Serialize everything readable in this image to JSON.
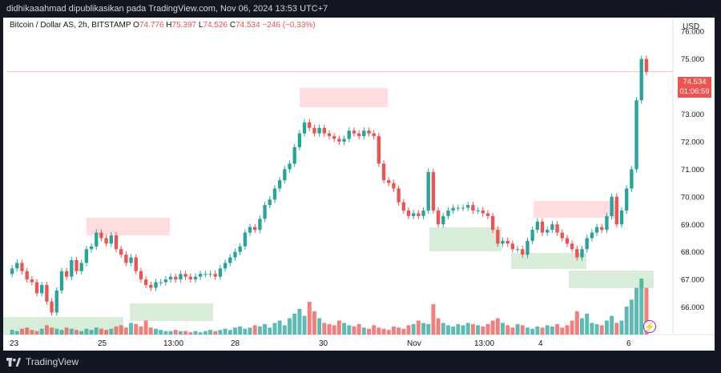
{
  "header": {
    "publish_line": "didhikaaahmad dipublikasikan pada TradingView.com, Nov 06, 2024 13:53 UTC+7"
  },
  "legend": {
    "symbol": "Bitcoin / Dollar AS, 2h, BITSTAMP",
    "o_label": "O",
    "o": "74.776",
    "h_label": "H",
    "h": "75.397",
    "l_label": "L",
    "l": "74.526",
    "c_label": "C",
    "c": "74.534",
    "change": "−246 (−0,33%)"
  },
  "price_tag": {
    "price": "74.534",
    "countdown": "01:06:59"
  },
  "currency": "USD",
  "footer": {
    "brand": "TradingView"
  },
  "colors": {
    "up": "#26a69a",
    "down": "#ef5350",
    "zone_red": "#ffcdd2",
    "zone_green": "#c8e6c9"
  },
  "chart_data": {
    "type": "candlestick",
    "y_axis": {
      "ticks": [
        "76.000",
        "75.000",
        "74.000",
        "73.000",
        "72.000",
        "71.000",
        "70.000",
        "69.000",
        "68.000",
        "67.000",
        "66.000"
      ],
      "ylim": [
        65000,
        76500
      ]
    },
    "x_axis": {
      "ticks": [
        "23",
        "25",
        "13:00",
        "28",
        "30",
        "Nov",
        "13:00",
        "4",
        "6"
      ]
    },
    "close_series": [
      67400,
      67600,
      67300,
      67000,
      66900,
      66500,
      66800,
      66200,
      65800,
      66600,
      67300,
      67100,
      67700,
      67300,
      67600,
      68100,
      68200,
      68700,
      68500,
      68300,
      68600,
      68100,
      67900,
      67600,
      67800,
      67300,
      67000,
      66800,
      66700,
      66900,
      66900,
      67000,
      67100,
      67000,
      67200,
      67100,
      67000,
      67100,
      67200,
      67200,
      67200,
      67100,
      67400,
      67600,
      67800,
      68000,
      68200,
      68700,
      68900,
      68800,
      69200,
      69700,
      69900,
      70300,
      70600,
      71000,
      71200,
      71800,
      72300,
      72700,
      72500,
      72300,
      72500,
      72300,
      72200,
      72100,
      72000,
      72100,
      72400,
      72300,
      72200,
      72400,
      72300,
      72200,
      71200,
      70600,
      70500,
      70300,
      69800,
      69500,
      69300,
      69400,
      69300,
      69500,
      70900,
      69500,
      69000,
      69300,
      69500,
      69600,
      69600,
      69600,
      69700,
      69500,
      69500,
      69400,
      69300,
      68800,
      68300,
      68400,
      68300,
      68100,
      68100,
      67900,
      68400,
      68800,
      69100,
      68700,
      68800,
      69000,
      68700,
      68500,
      68300,
      68100,
      67800,
      68100,
      68500,
      68700,
      68900,
      68800,
      69300,
      70000,
      69000,
      69500,
      70300,
      71000,
      73500,
      75000,
      74534
    ],
    "volume_series": [
      4,
      3,
      5,
      6,
      4,
      3,
      5,
      8,
      6,
      5,
      4,
      6,
      5,
      4,
      3,
      5,
      4,
      6,
      5,
      4,
      5,
      7,
      8,
      6,
      10,
      9,
      7,
      12,
      6,
      5,
      4,
      3,
      3,
      4,
      3,
      3,
      2,
      3,
      2,
      3,
      4,
      3,
      4,
      5,
      4,
      6,
      7,
      5,
      6,
      8,
      7,
      9,
      6,
      10,
      12,
      8,
      14,
      18,
      22,
      16,
      28,
      20,
      14,
      10,
      9,
      8,
      12,
      10,
      8,
      7,
      9,
      6,
      5,
      8,
      6,
      5,
      4,
      7,
      6,
      5,
      8,
      9,
      12,
      10,
      9,
      26,
      14,
      10,
      8,
      7,
      9,
      8,
      10,
      9,
      8,
      7,
      9,
      12,
      14,
      10,
      8,
      6,
      9,
      8,
      6,
      5,
      7,
      6,
      8,
      7,
      9,
      6,
      8,
      12,
      20,
      14,
      18,
      10,
      9,
      8,
      12,
      16,
      10,
      12,
      24,
      30,
      40,
      48,
      40
    ]
  }
}
